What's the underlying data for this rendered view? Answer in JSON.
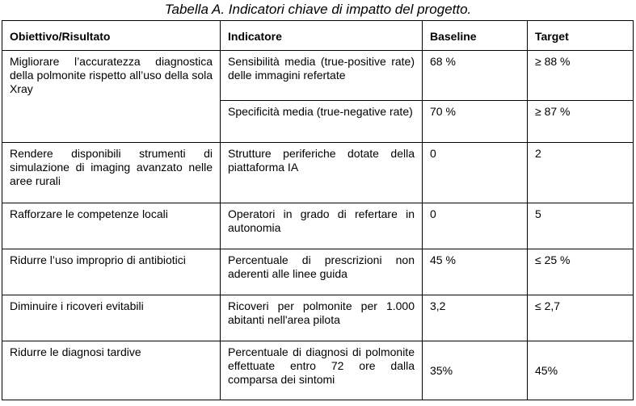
{
  "caption": "Tabella A. Indicatori chiave di impatto del progetto.",
  "headers": {
    "objective": "Obiettivo/Risultato",
    "indicator": "Indicatore",
    "baseline": "Baseline",
    "target": "Target"
  },
  "rows": [
    {
      "objective": "Migliorare l’accuratezza diagnostica della polmonite rispetto all’uso della sola Xray",
      "indicators": [
        {
          "indicator": "Sensibilità media (true-positive rate) delle immagini refertate",
          "baseline": "68 %",
          "target": "≥ 88 %"
        },
        {
          "indicator": "Specificità media (true-negative rate)",
          "baseline": "70 %",
          "target": "≥ 87 %"
        }
      ]
    },
    {
      "objective": "Rendere disponibili strumenti di simulazione di imaging avanzato nelle aree rurali",
      "indicators": [
        {
          "indicator": "Strutture periferiche dotate della piattaforma IA",
          "baseline": "0",
          "target": "2"
        }
      ]
    },
    {
      "objective": "Rafforzare le competenze locali",
      "indicators": [
        {
          "indicator": "Operatori in grado di refertare in autonomia",
          "baseline": "0",
          "target": "5"
        }
      ]
    },
    {
      "objective": "Ridurre l’uso improprio di antibiotici",
      "indicators": [
        {
          "indicator": "Percentuale di prescrizioni non aderenti alle linee guida",
          "baseline": "45 %",
          "target": "≤ 25 %"
        }
      ]
    },
    {
      "objective": "Diminuire i ricoveri evitabili",
      "indicators": [
        {
          "indicator": "Ricoveri per polmonite per 1.000 abitanti nell'area pilota",
          "baseline": "3,2",
          "target": "≤ 2,7"
        }
      ]
    },
    {
      "objective": "Ridurre le diagnosi tardive",
      "indicators": [
        {
          "indicator": "Percentuale di diagnosi di polmonite effettuate entro 72 ore dalla comparsa dei sintomi",
          "baseline": "35%",
          "target": "45%"
        }
      ]
    }
  ]
}
